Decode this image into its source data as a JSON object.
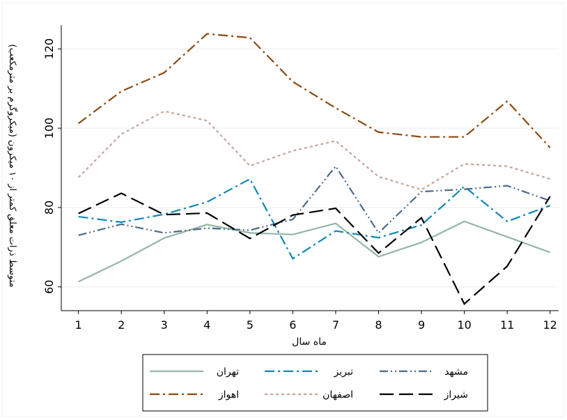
{
  "chart_data": {
    "type": "line",
    "title": "",
    "xlabel": "ماه سال",
    "ylabel": "متوسط ذرات معلق کمتر از ۱۰ میکرون (میکروگرم بر مترمکعب)",
    "x": [
      1,
      2,
      3,
      4,
      5,
      6,
      7,
      8,
      9,
      10,
      11,
      12
    ],
    "xlim": [
      0.6,
      12.2
    ],
    "ylim": [
      54,
      126
    ],
    "yticks": [
      60,
      80,
      100,
      120
    ],
    "grid": true,
    "legend_position": "bottom",
    "series": [
      {
        "name": "تهران",
        "color": "#94b5a8",
        "dash": "solid",
        "values": [
          61.3,
          66.5,
          72.3,
          75.7,
          73.6,
          73.2,
          76.0,
          67.6,
          71.2,
          76.5,
          72.6,
          68.7
        ]
      },
      {
        "name": "تبریز",
        "color": "#0f87b3",
        "dash": "dashdot",
        "values": [
          77.7,
          76.3,
          78.3,
          81.4,
          87.2,
          67.1,
          74.1,
          72.4,
          75.6,
          85.3,
          76.5,
          80.5
        ]
      },
      {
        "name": "مشهد",
        "color": "#4a6a8a",
        "dash": "dashdotdot",
        "values": [
          73.0,
          75.8,
          73.6,
          74.8,
          74.3,
          77.0,
          90.4,
          73.6,
          84.0,
          84.6,
          85.5,
          81.7
        ]
      },
      {
        "name": "اهواز",
        "color": "#8b4a0f",
        "dash": "longdashdot",
        "values": [
          101.2,
          109.3,
          114.0,
          123.8,
          122.8,
          111.7,
          105.1,
          99.0,
          97.8,
          97.8,
          106.8,
          95.1
        ]
      },
      {
        "name": "اصفهان",
        "color": "#c4a49a",
        "dash": "dotted",
        "values": [
          87.6,
          98.5,
          104.3,
          101.9,
          90.5,
          94.3,
          96.8,
          87.8,
          84.5,
          91.0,
          90.4,
          87.2
        ]
      },
      {
        "name": "شیراز",
        "color": "#000000",
        "dash": "longdash",
        "values": [
          78.5,
          83.6,
          78.2,
          78.6,
          72.2,
          78.1,
          79.8,
          68.5,
          77.4,
          55.7,
          65.2,
          82.8
        ]
      }
    ]
  }
}
